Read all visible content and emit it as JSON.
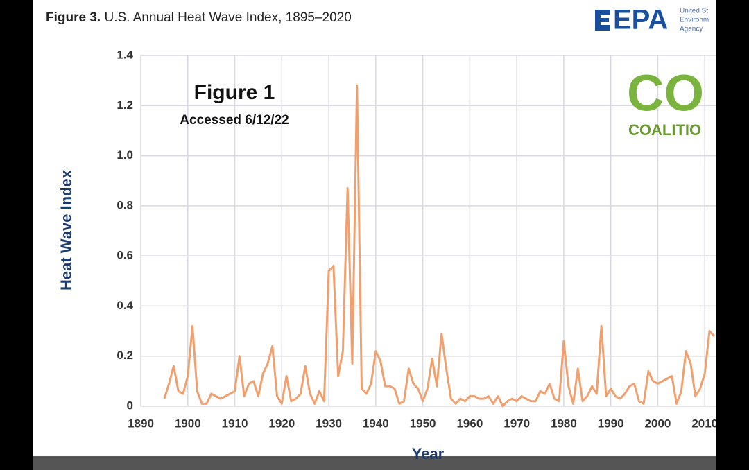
{
  "header": {
    "figure_label": "Figure 3.",
    "title": "U.S. Annual Heat Wave Index, 1895–2020",
    "logo": {
      "mark": "EPA",
      "lines": [
        "United St",
        "Environm",
        "Agency"
      ]
    }
  },
  "watermark": {
    "text": "CO",
    "subtext": "COALITIO"
  },
  "chart_data": {
    "type": "line",
    "annotations": [
      "Figure 1",
      "Accessed 6/12/22"
    ],
    "x_label": "Year",
    "y_label": "Heat Wave Index",
    "color": "#f0a06e",
    "grid": true,
    "xlim": [
      1890,
      2020
    ],
    "ylim": [
      0,
      1.4
    ],
    "xticks": [
      1890,
      1900,
      1910,
      1920,
      1930,
      1940,
      1950,
      1960,
      1970,
      1980,
      1990,
      2000,
      2010
    ],
    "yticks": [
      0,
      {
        "value": 0.2,
        "label": "0.2"
      },
      {
        "value": 0.4,
        "label": "0.4"
      },
      {
        "value": 0.6,
        "label": "0.6"
      },
      {
        "value": 0.8,
        "label": "0.8"
      },
      {
        "value": 1.0,
        "label": "1.0"
      },
      {
        "value": 1.2,
        "label": "1.2"
      },
      {
        "value": 1.4,
        "label": "1.4"
      }
    ],
    "x": [
      1895,
      1896,
      1897,
      1898,
      1899,
      1900,
      1901,
      1902,
      1903,
      1904,
      1905,
      1906,
      1907,
      1908,
      1909,
      1910,
      1911,
      1912,
      1913,
      1914,
      1915,
      1916,
      1917,
      1918,
      1919,
      1920,
      1921,
      1922,
      1923,
      1924,
      1925,
      1926,
      1927,
      1928,
      1929,
      1930,
      1931,
      1932,
      1933,
      1934,
      1935,
      1936,
      1937,
      1938,
      1939,
      1940,
      1941,
      1942,
      1943,
      1944,
      1945,
      1946,
      1947,
      1948,
      1949,
      1950,
      1951,
      1952,
      1953,
      1954,
      1955,
      1956,
      1957,
      1958,
      1959,
      1960,
      1961,
      1962,
      1963,
      1964,
      1965,
      1966,
      1967,
      1968,
      1969,
      1970,
      1971,
      1972,
      1973,
      1974,
      1975,
      1976,
      1977,
      1978,
      1979,
      1980,
      1981,
      1982,
      1983,
      1984,
      1985,
      1986,
      1987,
      1988,
      1989,
      1990,
      1991,
      1992,
      1993,
      1994,
      1995,
      1996,
      1997,
      1998,
      1999,
      2000,
      2001,
      2002,
      2003,
      2004,
      2005,
      2006,
      2007,
      2008,
      2009,
      2010,
      2011,
      2012
    ],
    "values": [
      0.03,
      0.09,
      0.16,
      0.06,
      0.05,
      0.12,
      0.32,
      0.06,
      0.01,
      0.01,
      0.05,
      0.04,
      0.03,
      0.04,
      0.05,
      0.06,
      0.2,
      0.04,
      0.09,
      0.1,
      0.04,
      0.13,
      0.17,
      0.24,
      0.04,
      0.01,
      0.12,
      0.02,
      0.03,
      0.05,
      0.16,
      0.05,
      0.01,
      0.06,
      0.02,
      0.54,
      0.56,
      0.12,
      0.22,
      0.87,
      0.17,
      1.28,
      0.07,
      0.05,
      0.09,
      0.22,
      0.18,
      0.08,
      0.08,
      0.07,
      0.01,
      0.02,
      0.15,
      0.09,
      0.07,
      0.02,
      0.07,
      0.19,
      0.08,
      0.29,
      0.15,
      0.03,
      0.01,
      0.03,
      0.02,
      0.04,
      0.04,
      0.03,
      0.03,
      0.04,
      0.01,
      0.04,
      0,
      0.02,
      0.03,
      0.02,
      0.04,
      0.03,
      0.02,
      0.02,
      0.06,
      0.05,
      0.09,
      0.03,
      0.02,
      0.26,
      0.08,
      0.01,
      0.15,
      0.02,
      0.04,
      0.08,
      0.05,
      0.32,
      0.04,
      0.07,
      0.04,
      0.03,
      0.05,
      0.08,
      0.09,
      0.02,
      0.01,
      0.14,
      0.1,
      0.09,
      0.1,
      0.11,
      0.12,
      0.01,
      0.06,
      0.22,
      0.17,
      0.04,
      0.07,
      0.13,
      0.3,
      0.28
    ]
  }
}
